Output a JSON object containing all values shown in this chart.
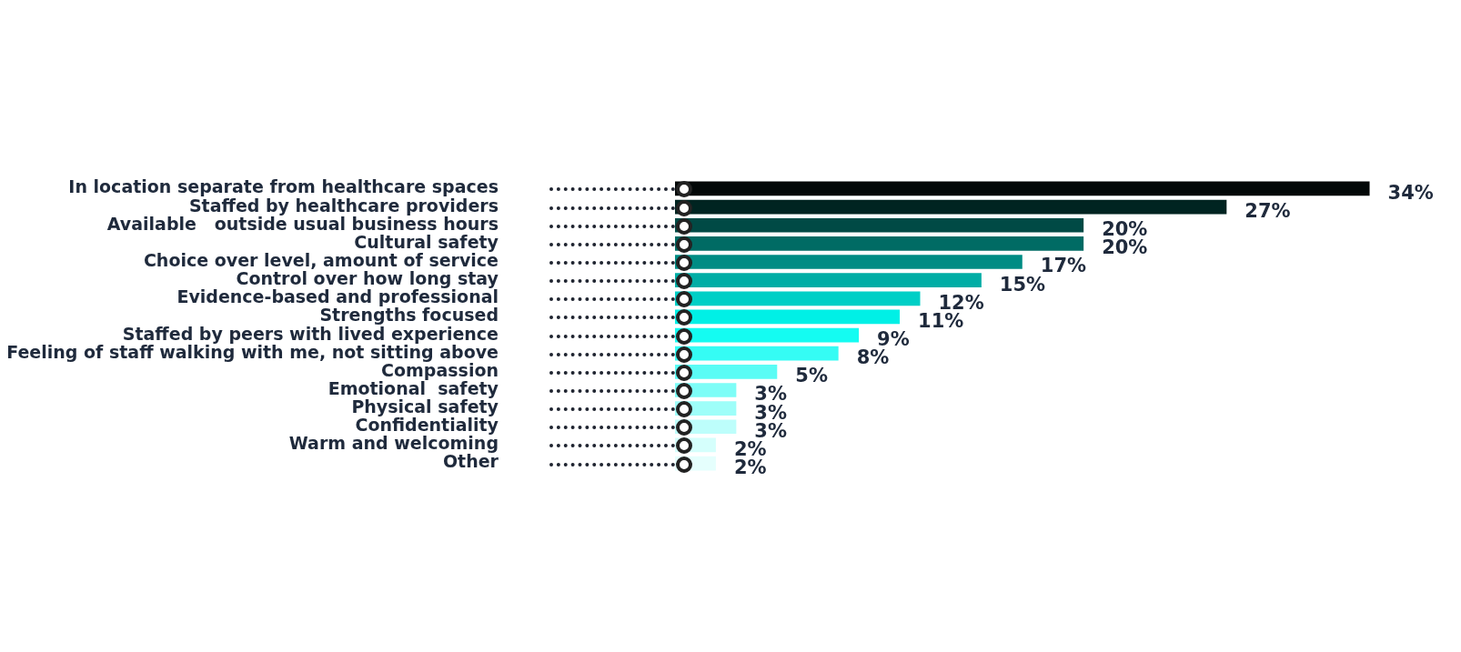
{
  "chart_data": {
    "type": "bar",
    "orientation": "horizontal",
    "categories": [
      "In location separate from healthcare spaces",
      "Staffed by healthcare providers",
      "Available   outside usual business hours",
      "Cultural safety",
      "Choice over level, amount of service",
      "Control over how long stay",
      "Evidence-based and professional",
      "Strengths focused",
      "Staffed by peers with lived experience",
      "Feeling of staff walking with me, not sitting above",
      "Compassion",
      "Emotional  safety",
      "Physical safety",
      "Confidentiality",
      "Warm and welcoming",
      "Other"
    ],
    "values": [
      34,
      27,
      20,
      20,
      17,
      15,
      12,
      11,
      9,
      8,
      5,
      3,
      3,
      3,
      2,
      2
    ],
    "value_labels": [
      "34%",
      "27%",
      "20%",
      "20%",
      "17%",
      "15%",
      "12%",
      "11%",
      "9%",
      "8%",
      "5%",
      "3%",
      "3%",
      "3%",
      "2%",
      "2%"
    ],
    "colors": [
      "#030808",
      "#002421",
      "#004a45",
      "#006b64",
      "#008c84",
      "#00ada5",
      "#00cfc6",
      "#00f0e6",
      "#14fcf2",
      "#35fcf4",
      "#5afcf5",
      "#7dfdf7",
      "#9efef9",
      "#bdfefb",
      "#d5fffc",
      "#e5fffd"
    ],
    "legend": false
  }
}
